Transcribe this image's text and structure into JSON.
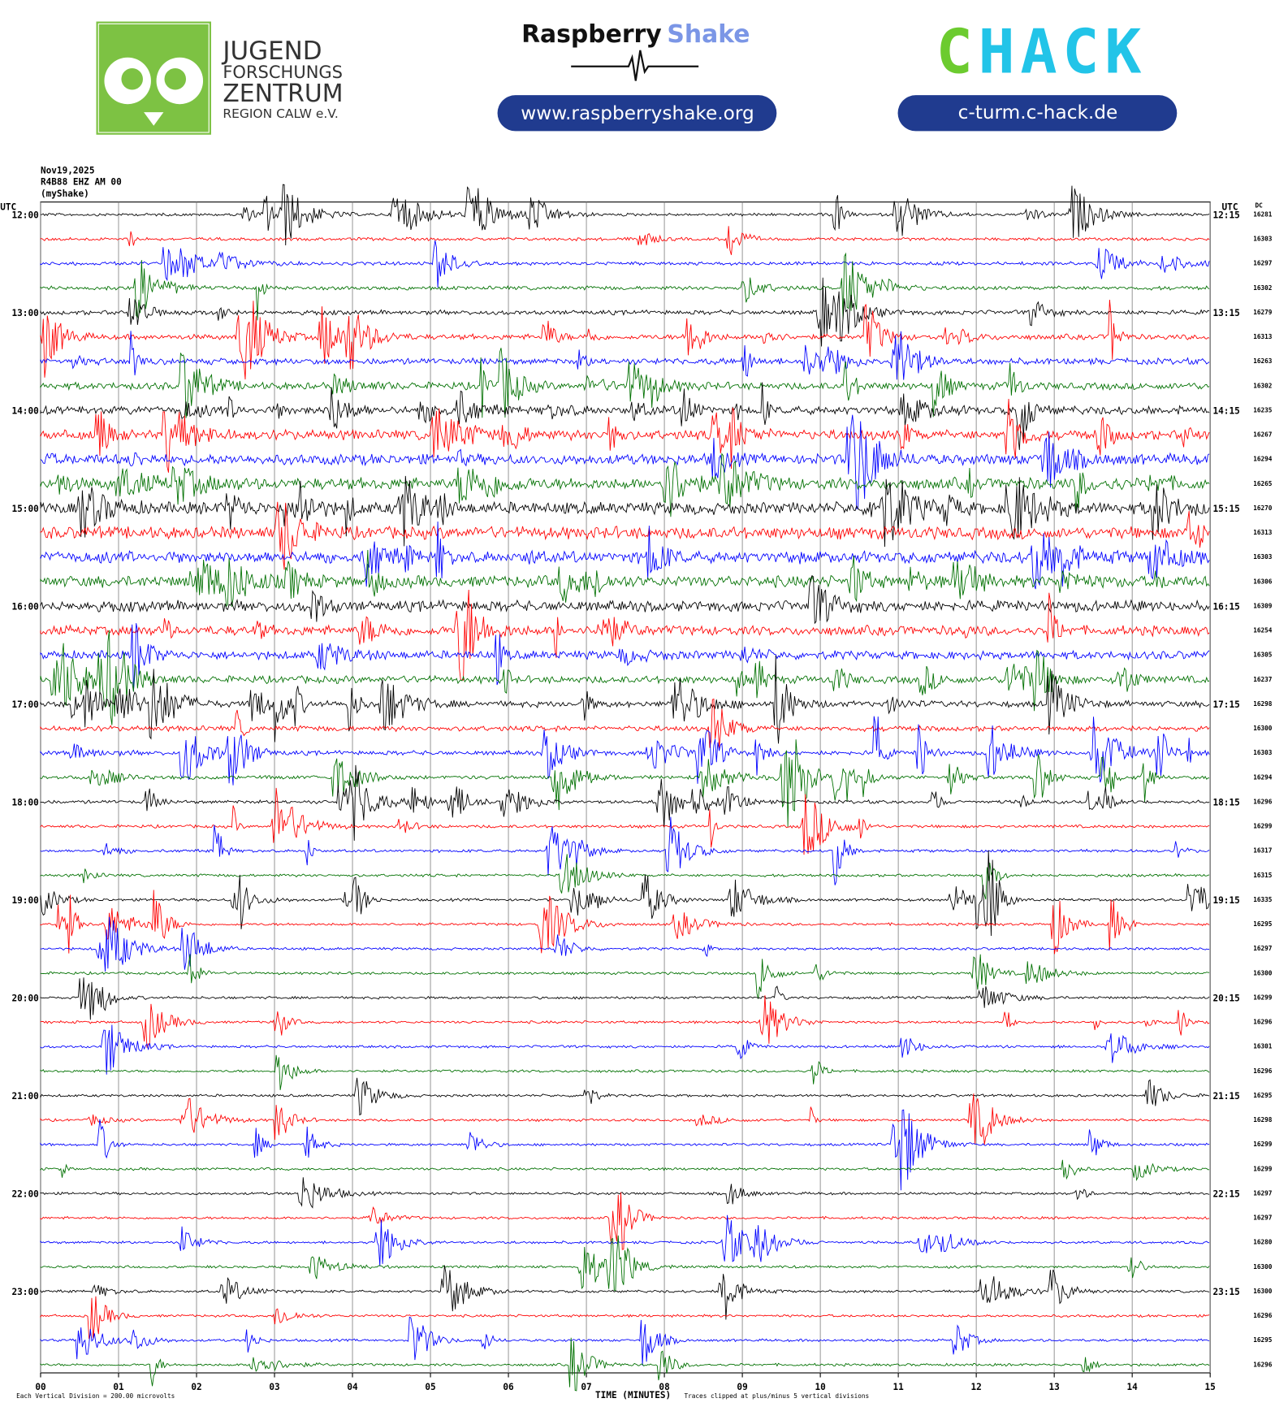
{
  "header": {
    "org": [
      "JUGEND",
      "FORSCHUNGS",
      "ZENTRUM",
      "REGION CALW e.V."
    ],
    "brand": {
      "first": "Raspberry",
      "second": "Shake",
      "url": "www.raspberryshake.org"
    },
    "hack": {
      "first": "C",
      "second": "HACK",
      "url": "c-turm.c-hack.de"
    }
  },
  "helicorder": {
    "date": "Nov19,2025",
    "station": "R4B88 EHZ AM 00",
    "network": "(myShake)",
    "left_unit": "UTC",
    "right_unit": "UTC",
    "dc_header": "DC",
    "left_labels": [
      "12:00",
      "13:00",
      "14:00",
      "15:00",
      "16:00",
      "17:00",
      "18:00",
      "19:00",
      "20:00",
      "21:00",
      "22:00",
      "23:00"
    ],
    "right_labels": [
      "12:15",
      "13:15",
      "14:15",
      "15:15",
      "16:15",
      "17:15",
      "18:15",
      "19:15",
      "20:15",
      "21:15",
      "22:15",
      "23:15"
    ],
    "dc": [
      16281,
      16303,
      16297,
      16302,
      16279,
      16313,
      16263,
      16302,
      16235,
      16267,
      16294,
      16265,
      16270,
      16313,
      16303,
      16306,
      16309,
      16254,
      16305,
      16237,
      16298,
      16300,
      16303,
      16294,
      16296,
      16299,
      16317,
      16315,
      16335,
      16295,
      16297,
      16300,
      16299,
      16296,
      16301,
      16296,
      16295,
      16298,
      16299,
      16299,
      16297,
      16297,
      16280,
      16300,
      16300,
      16296,
      16295,
      16296
    ],
    "colors": [
      "#000000",
      "#ff0000",
      "#0000ff",
      "#007000"
    ],
    "x_labels": [
      "00",
      "01",
      "02",
      "03",
      "04",
      "05",
      "06",
      "07",
      "08",
      "09",
      "10",
      "11",
      "12",
      "13",
      "14",
      "15"
    ],
    "x_title": "TIME (MINUTES)",
    "scale_note": "Each Vertical Division =  200.00 microvolts",
    "clip_note": "Traces clipped at plus/minus 5 vertical divisions"
  }
}
